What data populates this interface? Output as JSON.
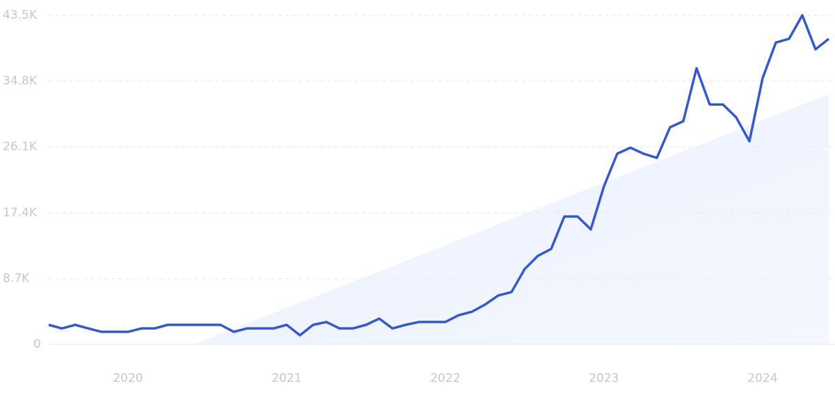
{
  "chart_data": {
    "type": "line",
    "categories": [
      null,
      null,
      null,
      null,
      null,
      null,
      "2020",
      null,
      null,
      null,
      null,
      null,
      null,
      null,
      null,
      null,
      null,
      null,
      "2021",
      null,
      null,
      null,
      null,
      null,
      null,
      null,
      null,
      null,
      null,
      null,
      "2022",
      null,
      null,
      null,
      null,
      null,
      null,
      null,
      null,
      null,
      null,
      null,
      "2023",
      null,
      null,
      null,
      null,
      null,
      null,
      null,
      null,
      null,
      null,
      null,
      "2024",
      null,
      null,
      null,
      null,
      null
    ],
    "series": [
      {
        "color": "#3358d4",
        "values": [
          2575,
          2100,
          2575,
          2100,
          1650,
          1650,
          1650,
          2100,
          2100,
          2575,
          2575,
          2575,
          2575,
          2575,
          1650,
          2100,
          2100,
          2100,
          2575,
          1200,
          2575,
          2950,
          2100,
          2100,
          2575,
          3400,
          2100,
          2575,
          2950,
          2950,
          2950,
          3850,
          4300,
          5250,
          6450,
          6900,
          9950,
          11700,
          12600,
          16900,
          16900,
          15200,
          20900,
          25200,
          26000,
          25200,
          24650,
          28700,
          29500,
          36500,
          31700,
          31700,
          30000,
          26850,
          35200,
          39900,
          40400,
          43500,
          39000,
          40400
        ]
      },
      {
        "kind": "area",
        "color": "#e6eefc",
        "values": [
          null,
          null,
          null,
          null,
          null,
          null,
          null,
          null,
          null,
          null,
          null,
          0,
          690,
          1380,
          2070,
          2760,
          3450,
          4140,
          4830,
          5520,
          6210,
          6900,
          7590,
          8280,
          8960,
          9650,
          10340,
          11030,
          11720,
          12410,
          13100,
          13790,
          14480,
          15170,
          15860,
          16550,
          17240,
          17930,
          18620,
          19310,
          20000,
          20690,
          21380,
          22070,
          22760,
          23450,
          24140,
          24830,
          25520,
          26200,
          26890,
          27580,
          28270,
          28960,
          29650,
          30340,
          31030,
          31720,
          32410,
          33100
        ]
      }
    ],
    "ylim": [
      0,
      43500
    ],
    "yticks": [
      0,
      {
        "value": 8700,
        "label": "8.7K"
      },
      {
        "value": 17400,
        "label": "17.4K"
      },
      {
        "value": 26100,
        "label": "26.1K"
      },
      {
        "value": 34800,
        "label": "34.8K"
      },
      {
        "value": 43500,
        "label": "43.5K"
      }
    ],
    "grid": true
  }
}
